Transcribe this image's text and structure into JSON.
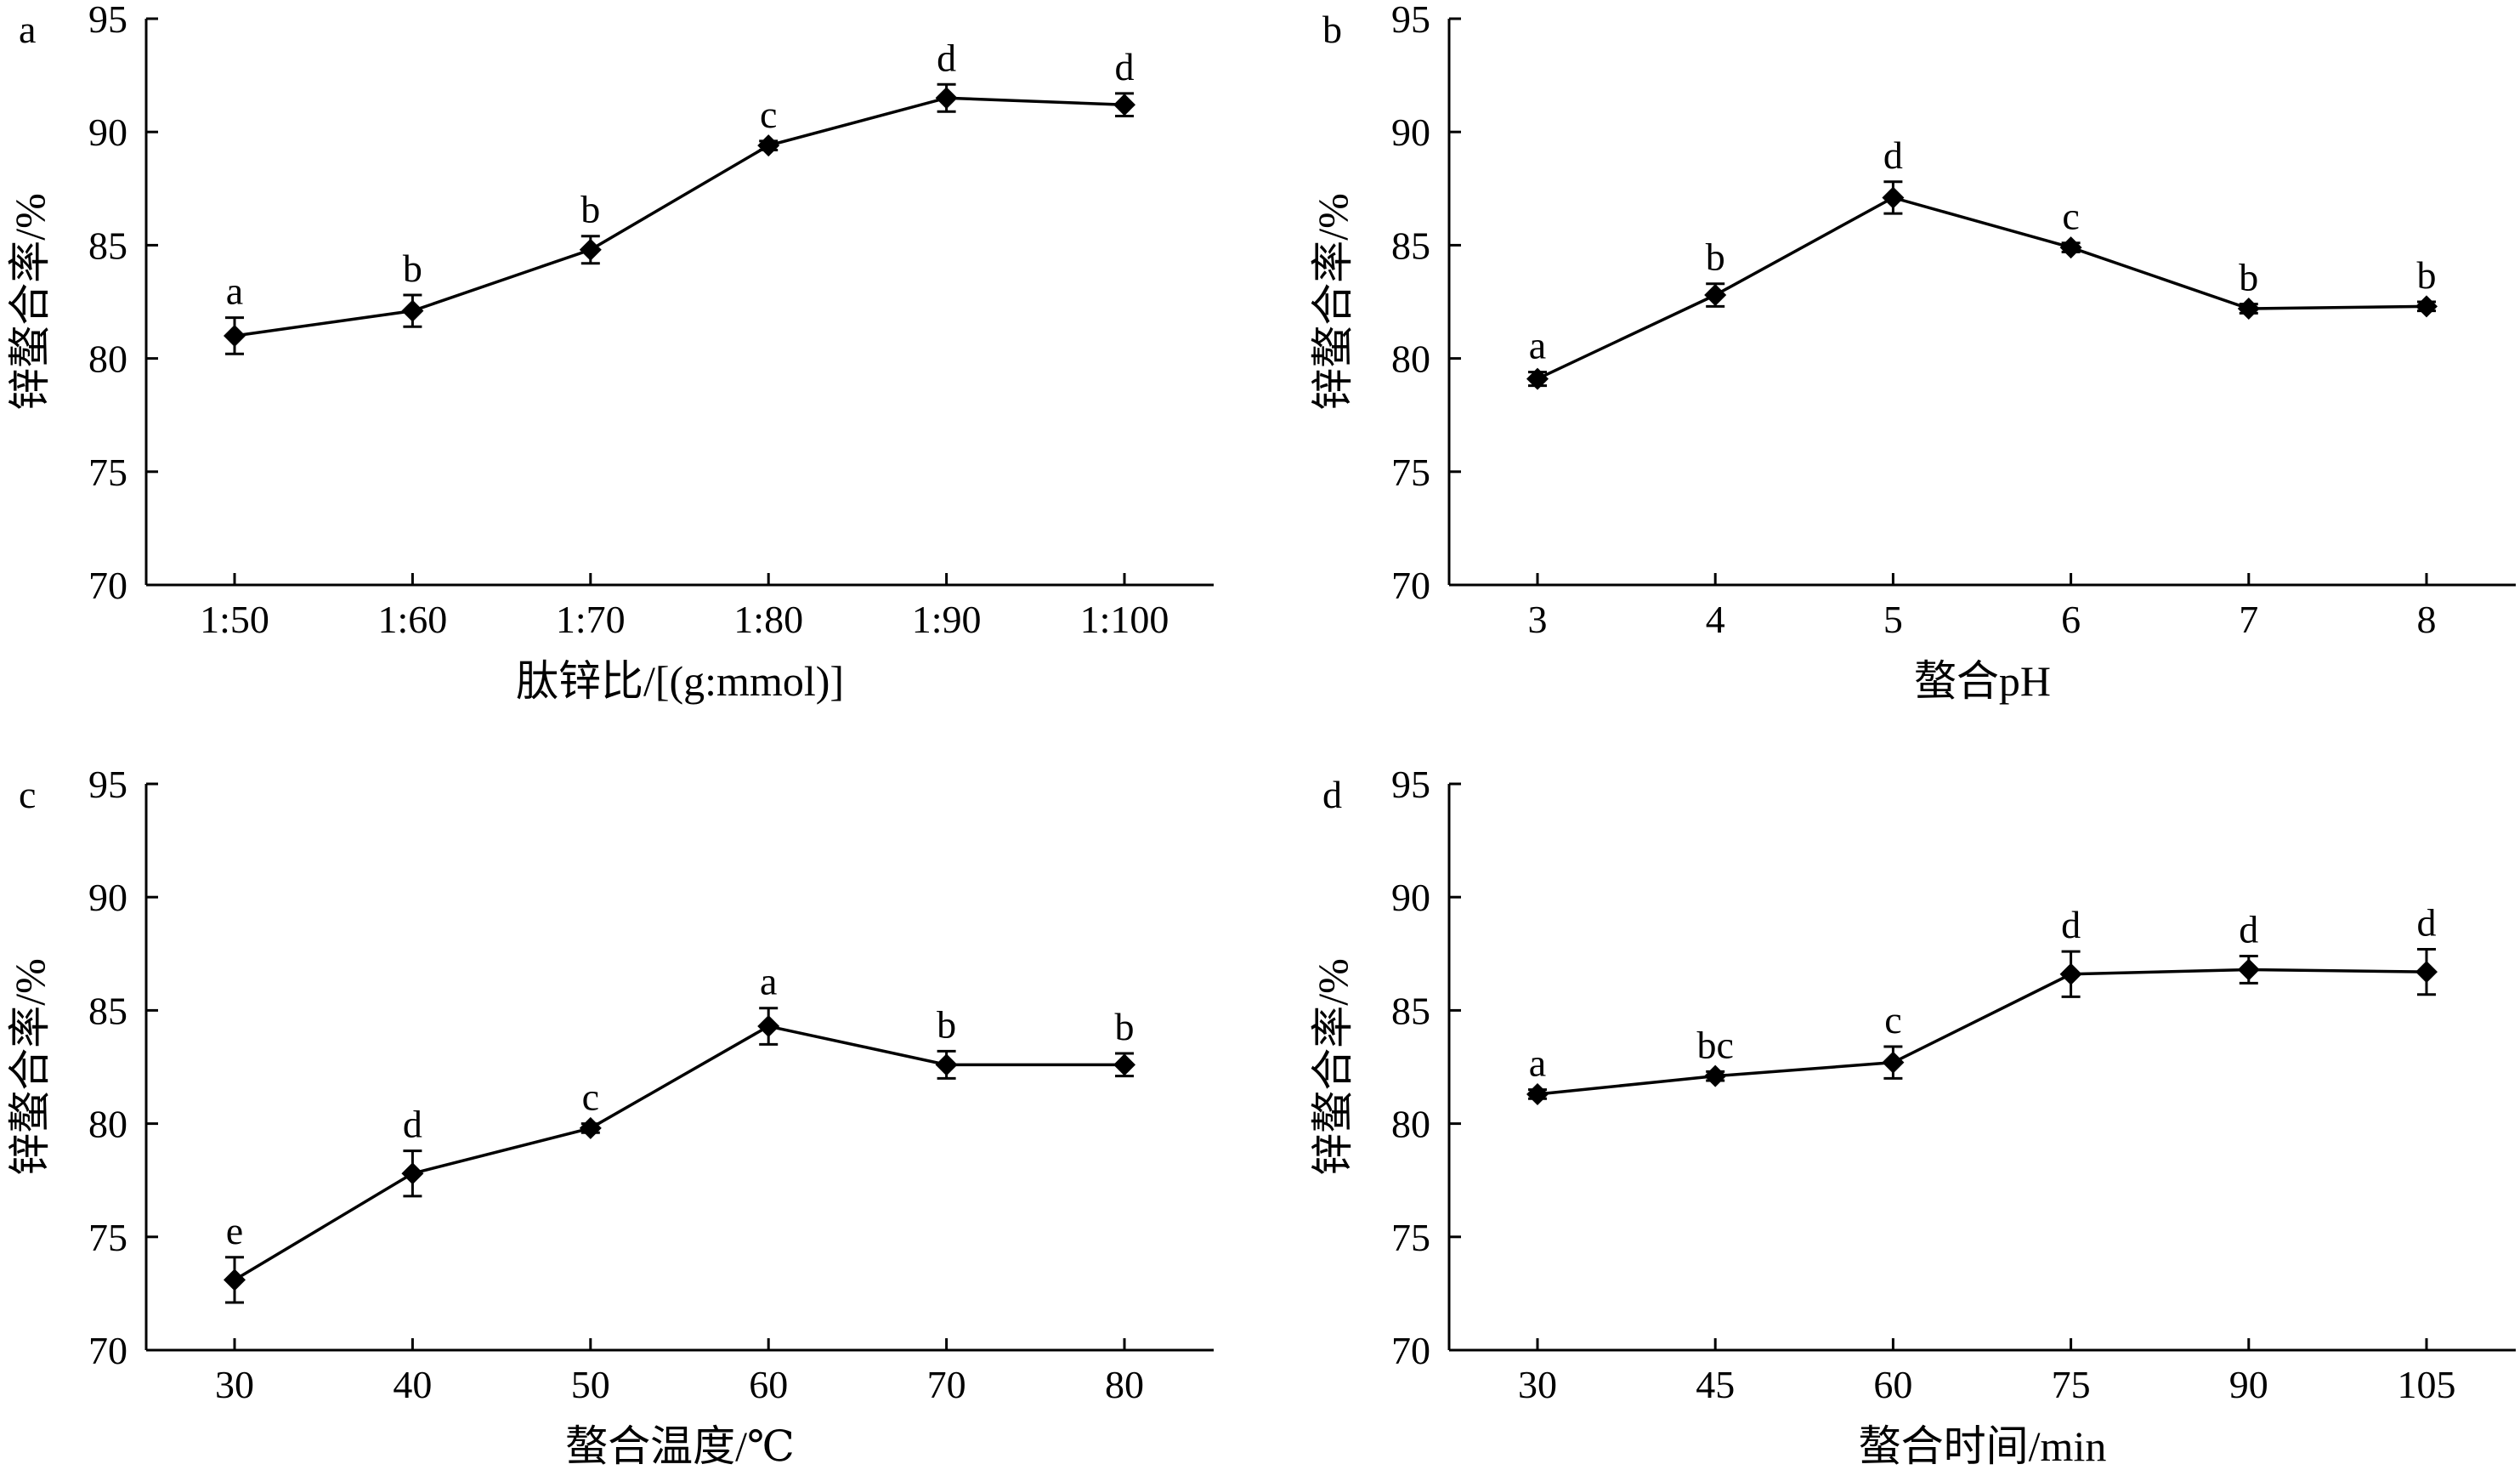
{
  "panels": [
    {
      "label": "a",
      "chart_data": {
        "type": "line",
        "categories": [
          "1:50",
          "1:60",
          "1:70",
          "1:80",
          "1:90",
          "1:100"
        ],
        "values": [
          81.0,
          82.1,
          84.8,
          89.4,
          91.5,
          91.2
        ],
        "errors": [
          0.8,
          0.7,
          0.6,
          0.2,
          0.6,
          0.5
        ],
        "significance": [
          "a",
          "b",
          "b",
          "c",
          "d",
          "d"
        ],
        "xlabel": "肽锌比/[(g:mmol)]",
        "ylabel": "锌螯合率/%",
        "ylim": [
          70,
          95
        ],
        "yticks": [
          "70",
          "75",
          "80",
          "85",
          "90",
          "95"
        ],
        "grid": false,
        "legend": "none"
      }
    },
    {
      "label": "b",
      "chart_data": {
        "type": "line",
        "categories": [
          "3",
          "4",
          "5",
          "6",
          "7",
          "8"
        ],
        "values": [
          79.1,
          82.8,
          87.1,
          84.9,
          82.2,
          82.3
        ],
        "errors": [
          0.3,
          0.5,
          0.7,
          0.2,
          0.2,
          0.2
        ],
        "significance": [
          "a",
          "b",
          "d",
          "c",
          "b",
          "b"
        ],
        "xlabel": "螯合pH",
        "ylabel": "锌螯合率/%",
        "ylim": [
          70,
          95
        ],
        "yticks": [
          "70",
          "75",
          "80",
          "85",
          "90",
          "95"
        ],
        "grid": false,
        "legend": "none"
      }
    },
    {
      "label": "c",
      "chart_data": {
        "type": "line",
        "categories": [
          "30",
          "40",
          "50",
          "60",
          "70",
          "80"
        ],
        "values": [
          73.1,
          77.8,
          79.8,
          84.3,
          82.6,
          82.6
        ],
        "errors": [
          1.0,
          1.0,
          0.2,
          0.8,
          0.6,
          0.5
        ],
        "significance": [
          "e",
          "d",
          "c",
          "a",
          "b",
          "b"
        ],
        "xlabel": "螯合温度/℃",
        "ylabel": "锌螯合率/%",
        "ylim": [
          70,
          95
        ],
        "yticks": [
          "70",
          "75",
          "80",
          "85",
          "90",
          "95"
        ],
        "grid": false,
        "legend": "none"
      }
    },
    {
      "label": "d",
      "chart_data": {
        "type": "line",
        "categories": [
          "30",
          "45",
          "60",
          "75",
          "90",
          "105"
        ],
        "values": [
          81.3,
          82.1,
          82.7,
          86.6,
          86.8,
          86.7
        ],
        "errors": [
          0.2,
          0.2,
          0.7,
          1.0,
          0.6,
          1.0
        ],
        "significance": [
          "a",
          "bc",
          "c",
          "d",
          "d",
          "d"
        ],
        "xlabel": "螯合时间/min",
        "ylabel": "锌螯合率/%",
        "ylim": [
          70,
          95
        ],
        "yticks": [
          "70",
          "75",
          "80",
          "85",
          "90",
          "95"
        ],
        "grid": false,
        "legend": "none"
      }
    }
  ]
}
